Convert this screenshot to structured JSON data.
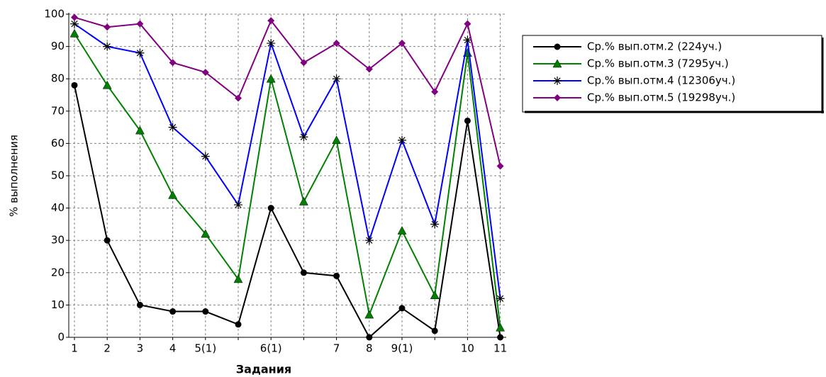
{
  "chart_data": {
    "type": "line",
    "x_label": "Задания",
    "y_label": "% выполнения",
    "categories": [
      "1",
      "2",
      "3",
      "4",
      "5(1)",
      null,
      "6(1)",
      null,
      "7",
      "8",
      "9(1)",
      null,
      "10",
      "11"
    ],
    "series": [
      {
        "name": "Ср.% вып.отм.2 (224уч.)",
        "color": "#000000",
        "marker": "circle",
        "values": [
          78,
          30,
          10,
          8,
          8,
          4,
          40,
          20,
          19,
          0,
          9,
          2,
          67,
          0
        ]
      },
      {
        "name": "Ср.% вып.отм.3 (7295уч.)",
        "color": "#008000",
        "marker": "triangle",
        "values": [
          94,
          78,
          64,
          44,
          32,
          18,
          80,
          42,
          61,
          7,
          33,
          13,
          88,
          3
        ]
      },
      {
        "name": "Ср.% вып.отм.4 (12306уч.)",
        "color": "#0000ff",
        "marker": "star",
        "values": [
          97,
          90,
          88,
          65,
          56,
          41,
          91,
          62,
          80,
          30,
          61,
          35,
          92,
          12
        ]
      },
      {
        "name": "Ср.% вып.отм.5 (19298уч.)",
        "color": "#800080",
        "marker": "diamond",
        "values": [
          99,
          96,
          97,
          85,
          82,
          74,
          98,
          85,
          91,
          83,
          91,
          76,
          97,
          53
        ]
      }
    ],
    "ylim": [
      0,
      100
    ],
    "yticks": [
      0,
      10,
      20,
      30,
      40,
      50,
      60,
      70,
      80,
      90,
      100
    ],
    "grid": true
  }
}
